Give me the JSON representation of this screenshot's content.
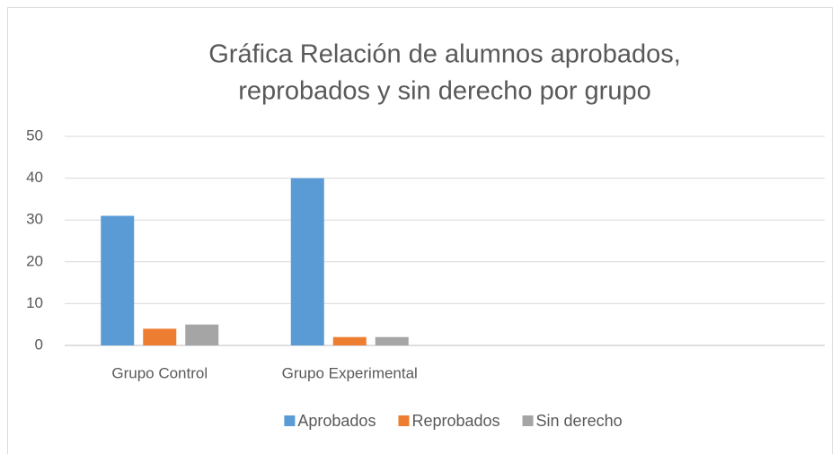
{
  "chart_data": {
    "type": "bar",
    "title": [
      "Gráfica Relación de alumnos aprobados,",
      "reprobados y sin derecho por grupo"
    ],
    "categories": [
      "Grupo Control",
      "Grupo Experimental",
      null,
      null
    ],
    "series": [
      {
        "name": "Aprobados",
        "color": "#5b9bd5",
        "values": [
          31,
          40,
          null,
          null
        ]
      },
      {
        "name": "Reprobados",
        "color": "#ed7d31",
        "values": [
          4,
          2,
          null,
          null
        ]
      },
      {
        "name": "Sin derecho",
        "color": "#a5a5a5",
        "values": [
          5,
          2,
          null,
          null
        ]
      }
    ],
    "ylim": [
      0,
      50
    ],
    "yticks": [
      0,
      10,
      20,
      30,
      40,
      50
    ],
    "grid": true,
    "legend": "bottom"
  }
}
